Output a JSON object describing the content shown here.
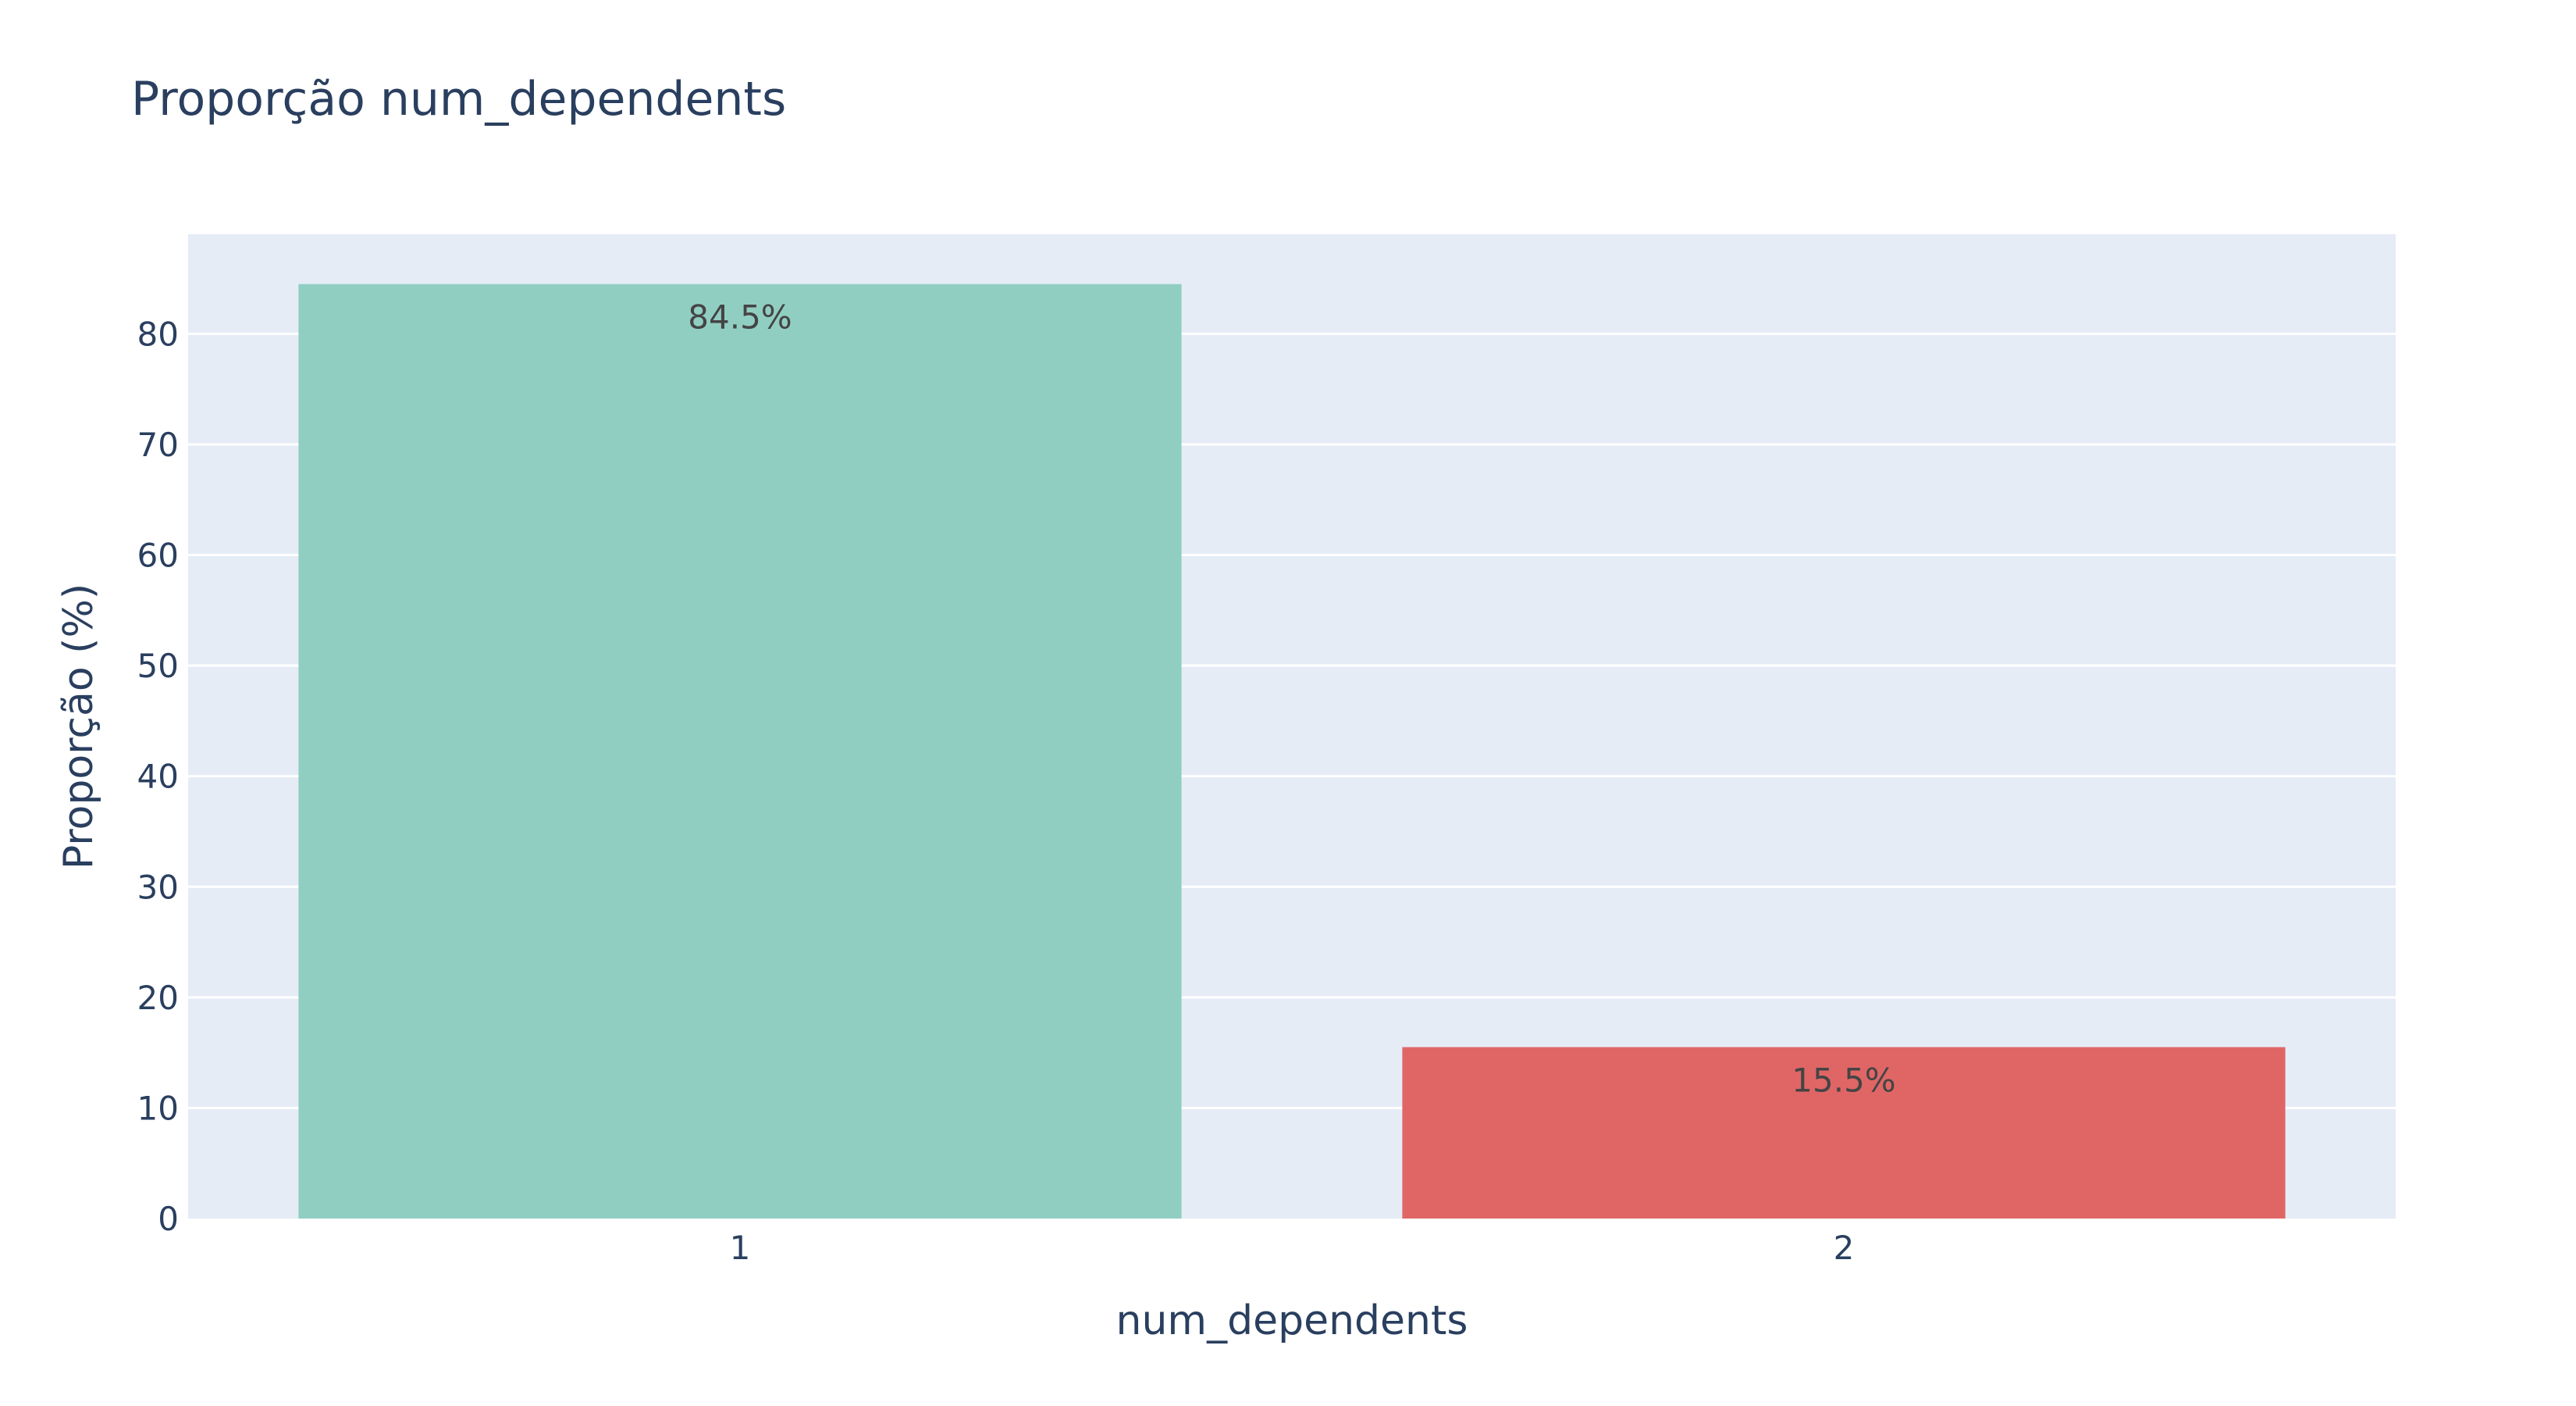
{
  "chart_data": {
    "type": "bar",
    "title": "Proporção num_dependents",
    "xlabel": "num_dependents",
    "ylabel": "Proporção (%)",
    "categories": [
      "1",
      "2"
    ],
    "values": [
      84.5,
      15.5
    ],
    "data_labels": [
      "84.5%",
      "15.5%"
    ],
    "bar_colors": [
      "#91cec2",
      "#e06666"
    ],
    "ylim": [
      0,
      89
    ],
    "yticks": [
      0,
      10,
      20,
      30,
      40,
      50,
      60,
      70,
      80
    ],
    "grid": true,
    "legend": "none",
    "plot_background": "#e5ecf6",
    "gridline_color": "#ffffff"
  }
}
